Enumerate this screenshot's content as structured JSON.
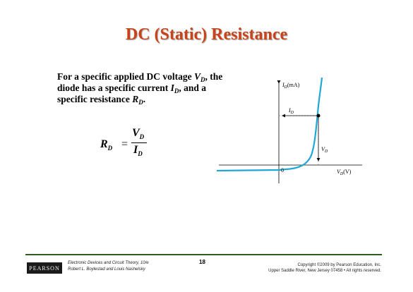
{
  "slide": {
    "title": "DC (Static) Resistance",
    "body": {
      "intro": "For a specific applied DC voltage",
      "v_symbol": "V",
      "v_sub": "D",
      "mid": ", the diode has a specific current",
      "i_symbol": "I",
      "i_sub": "D",
      "end": ", and a specific resistance",
      "r_symbol": "R",
      "r_sub": "D",
      "period": "."
    },
    "formula": {
      "lhs": "R",
      "lhs_sub": "D",
      "eq": "=",
      "num": "V",
      "num_sub": "D",
      "den": "I",
      "den_sub": "D"
    }
  },
  "graph": {
    "y_axis_label": "I",
    "y_axis_sub": "D",
    "y_axis_unit": "(mA)",
    "x_axis_label": "V",
    "x_axis_sub": "D",
    "x_axis_unit": "(V)",
    "origin_label": "0",
    "id_marker_label": "I",
    "id_marker_sub": "D",
    "vd_marker_label": "V",
    "vd_marker_sub": "D",
    "curve_color": "#1ea8d8"
  },
  "footer": {
    "logo": "PEARSON",
    "book_title": "Electronic Devices and Circuit Theory, 10/e",
    "authors": "Robert L. Boylestad and Louis Nashelsky",
    "page": "18",
    "copyright": "Copyright ©2009 by Pearson Education, Inc.",
    "rights": "Upper Saddle River, New Jersey 07458 • All rights reserved."
  }
}
